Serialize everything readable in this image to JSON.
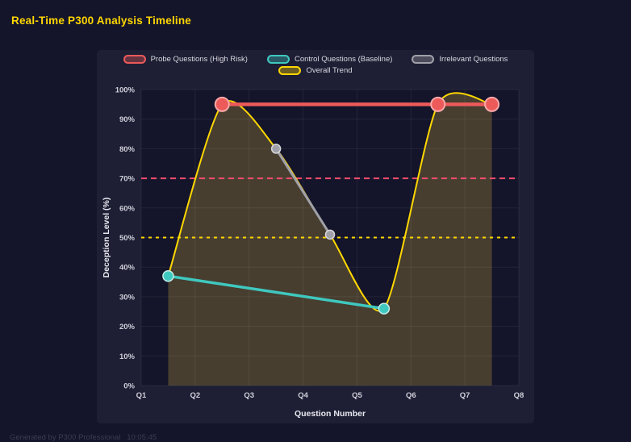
{
  "page": {
    "title": "Real-Time P300 Analysis Timeline",
    "footer": "Generated by P300 Professional   10:05:45"
  },
  "colors": {
    "page_bg": "#14142b",
    "panel_bg": "#1e1e34",
    "plot_bg": "#14142a",
    "grid": "rgba(255,255,255,0.07)",
    "tick_text": "#cfcfda",
    "axis_title_text": "#e8e8f0",
    "legend_text": "#d9d9e2",
    "title_text": "#ffd700",
    "footer_text": "#3c3c52"
  },
  "chart_data": {
    "type": "line",
    "title": "Real-Time P300 Analysis Timeline",
    "xlabel": "Question Number",
    "ylabel": "Deception Level (%)",
    "xlim": [
      1,
      8
    ],
    "ylim": [
      0,
      100
    ],
    "grid": true,
    "legend_position": "top",
    "x_ticks": [
      {
        "value": 1,
        "label": "Q1"
      },
      {
        "value": 2,
        "label": "Q2"
      },
      {
        "value": 3,
        "label": "Q3"
      },
      {
        "value": 4,
        "label": "Q4"
      },
      {
        "value": 5,
        "label": "Q5"
      },
      {
        "value": 6,
        "label": "Q6"
      },
      {
        "value": 7,
        "label": "Q7"
      },
      {
        "value": 8,
        "label": "Q8"
      }
    ],
    "y_ticks": [
      {
        "value": 0,
        "label": "0%"
      },
      {
        "value": 10,
        "label": "10%"
      },
      {
        "value": 20,
        "label": "20%"
      },
      {
        "value": 30,
        "label": "30%"
      },
      {
        "value": 40,
        "label": "40%"
      },
      {
        "value": 50,
        "label": "50%"
      },
      {
        "value": 60,
        "label": "60%"
      },
      {
        "value": 70,
        "label": "70%"
      },
      {
        "value": 80,
        "label": "80%"
      },
      {
        "value": 90,
        "label": "90%"
      },
      {
        "value": 100,
        "label": "100%"
      }
    ],
    "thresholds": [
      {
        "id": "high-risk-threshold",
        "value": 70,
        "color": "#ff4d6d",
        "dash": "7 5",
        "width": 2
      },
      {
        "id": "baseline-threshold",
        "value": 50,
        "color": "#ffd700",
        "dash": "4 5",
        "width": 2
      }
    ],
    "series": [
      {
        "id": "trend",
        "name": "Overall Trend",
        "color": "#ffd700",
        "width": 2,
        "spline": true,
        "area_fill": "rgba(255,213,74,0.22)",
        "marker": null,
        "points": [
          [
            1.5,
            37
          ],
          [
            2.5,
            95
          ],
          [
            3.5,
            80
          ],
          [
            4.5,
            51
          ],
          [
            5.5,
            26
          ],
          [
            6.5,
            95
          ],
          [
            7.5,
            95
          ]
        ]
      },
      {
        "id": "irrelevant",
        "name": "Irrelevant Questions",
        "color": "#a0a0a8",
        "width": 3,
        "spline": false,
        "area_fill": null,
        "marker": {
          "r": 5.5,
          "stroke": "#d6d6da",
          "stroke_width": 1.5
        },
        "points": [
          [
            3.5,
            80
          ],
          [
            4.5,
            51
          ]
        ]
      },
      {
        "id": "control",
        "name": "Control Questions (Baseline)",
        "color": "#3fc8bf",
        "width": 3.5,
        "spline": false,
        "area_fill": null,
        "marker": {
          "r": 6.5,
          "stroke": "#c6ece9",
          "stroke_width": 1.5
        },
        "points": [
          [
            1.5,
            37
          ],
          [
            5.5,
            26
          ]
        ]
      },
      {
        "id": "probe",
        "name": "Probe Questions (High Risk)",
        "color": "#ec5a5a",
        "width": 4.5,
        "spline": false,
        "area_fill": null,
        "marker": {
          "r": 8.5,
          "stroke": "#f9a8a8",
          "stroke_width": 2
        },
        "points": [
          [
            2.5,
            95
          ],
          [
            6.5,
            95
          ],
          [
            7.5,
            95
          ]
        ]
      }
    ],
    "legend_rows": [
      [
        "probe",
        "control",
        "irrelevant"
      ],
      [
        "trend"
      ]
    ]
  }
}
